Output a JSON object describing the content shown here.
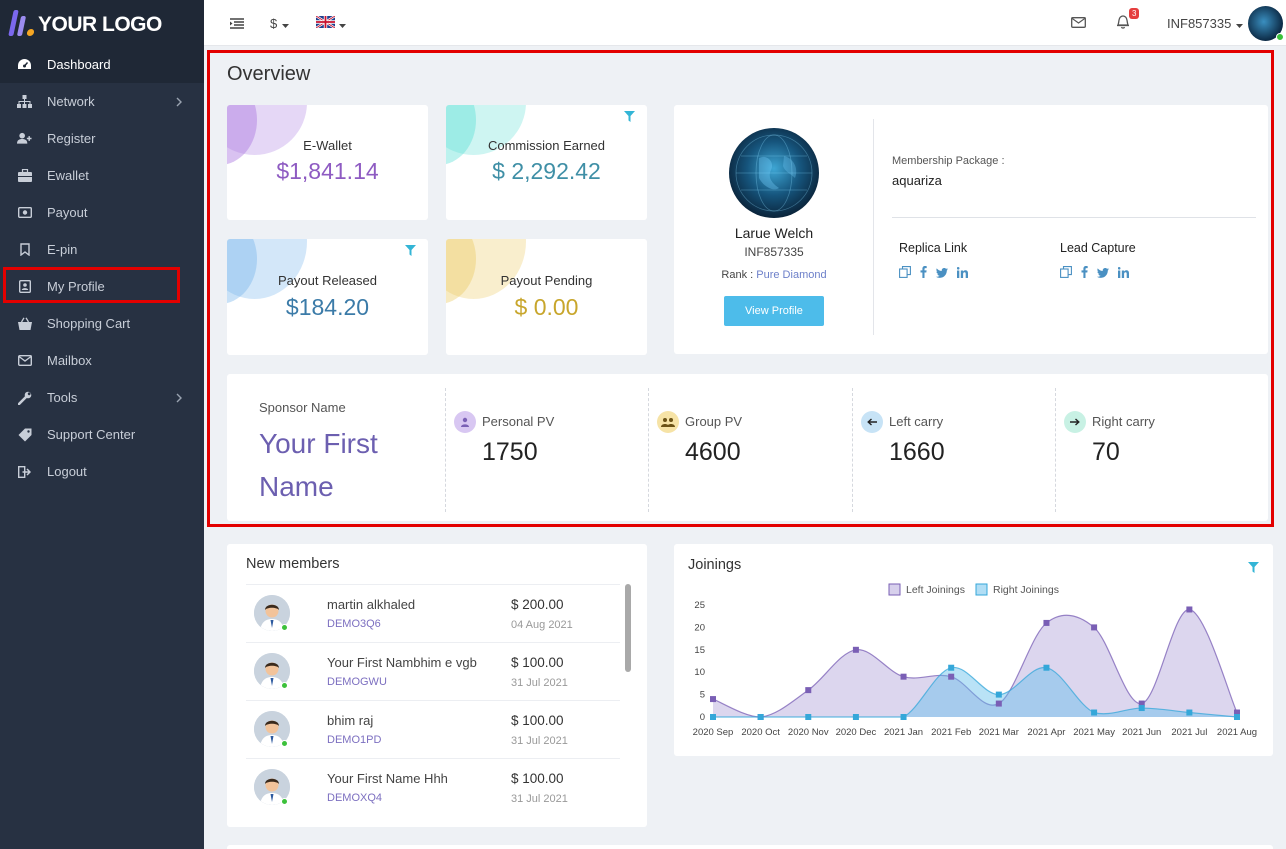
{
  "logo": {
    "text": "YOUR LOGO"
  },
  "sidebar": {
    "items": [
      {
        "label": "Dashboard",
        "icon": "dashboard-icon"
      },
      {
        "label": "Network",
        "icon": "network-icon"
      },
      {
        "label": "Register",
        "icon": "add-user-icon"
      },
      {
        "label": "Ewallet",
        "icon": "briefcase-icon"
      },
      {
        "label": "Payout",
        "icon": "money-icon"
      },
      {
        "label": "E-pin",
        "icon": "bookmark-icon"
      },
      {
        "label": "My Profile",
        "icon": "profile-icon"
      },
      {
        "label": "Shopping Cart",
        "icon": "cart-icon"
      },
      {
        "label": "Mailbox",
        "icon": "mail-icon"
      },
      {
        "label": "Tools",
        "icon": "wrench-icon"
      },
      {
        "label": "Support Center",
        "icon": "tag-icon"
      },
      {
        "label": "Logout",
        "icon": "logout-icon"
      }
    ]
  },
  "topbar": {
    "currency": "$",
    "notification_count": "3",
    "username": "INF857335"
  },
  "overview": {
    "title": "Overview",
    "stats": [
      {
        "label": "E-Wallet",
        "value": "$1,841.14",
        "color": "#8e5bc2"
      },
      {
        "label": "Commission Earned",
        "value": "$ 2,292.42",
        "color": "#3f8fa6"
      },
      {
        "label": "Payout Released",
        "value": "$184.20",
        "color": "#3b7ba8"
      },
      {
        "label": "Payout Pending",
        "value": "$ 0.00",
        "color": "#c8a62c"
      }
    ],
    "profile": {
      "name": "Larue Welch",
      "id": "INF857335",
      "rank_label": "Rank : ",
      "rank_value": "Pure Diamond",
      "button": "View Profile",
      "membership_label": "Membership Package :",
      "membership_value": "aquariza",
      "replica_label": "Replica Link",
      "lead_label": "Lead Capture"
    },
    "sponsor": {
      "label": "Sponsor Name",
      "name_line1": "Your First",
      "name_line2": "Name"
    },
    "pv": [
      {
        "label": "Personal PV",
        "value": "1750"
      },
      {
        "label": "Group PV",
        "value": "4600"
      },
      {
        "label": "Left carry",
        "value": "1660"
      },
      {
        "label": "Right carry",
        "value": "70"
      }
    ]
  },
  "new_members": {
    "title": "New members",
    "rows": [
      {
        "name": "martin alkhaled",
        "id": "DEMO3Q6",
        "amount": "$ 200.00",
        "date": "04 Aug 2021"
      },
      {
        "name": "Your First Nambhim e vgb",
        "id": "DEMOGWU",
        "amount": "$ 100.00",
        "date": "31 Jul 2021"
      },
      {
        "name": "bhim raj",
        "id": "DEMO1PD",
        "amount": "$ 100.00",
        "date": "31 Jul 2021"
      },
      {
        "name": "Your First Name Hhh",
        "id": "DEMOXQ4",
        "amount": "$ 100.00",
        "date": "31 Jul 2021"
      }
    ]
  },
  "joinings": {
    "title": "Joinings"
  },
  "chart_data": {
    "type": "area",
    "title": "Joinings",
    "categories": [
      "2020 Sep",
      "2020 Oct",
      "2020 Nov",
      "2020 Dec",
      "2021 Jan",
      "2021 Feb",
      "2021 Mar",
      "2021 Apr",
      "2021 May",
      "2021 Jun",
      "2021 Jul",
      "2021 Aug"
    ],
    "series": [
      {
        "name": "Left Joinings",
        "values": [
          4,
          0,
          6,
          15,
          9,
          9,
          3,
          21,
          20,
          3,
          24,
          1
        ],
        "color": "#7a5fb5"
      },
      {
        "name": "Right Joinings",
        "values": [
          0,
          0,
          0,
          0,
          0,
          11,
          5,
          11,
          1,
          2,
          1,
          0
        ],
        "color": "#35a7d9"
      }
    ],
    "ylim": [
      0,
      25
    ],
    "yticks": [
      0,
      5,
      10,
      15,
      20,
      25
    ],
    "legend": "top-center"
  }
}
